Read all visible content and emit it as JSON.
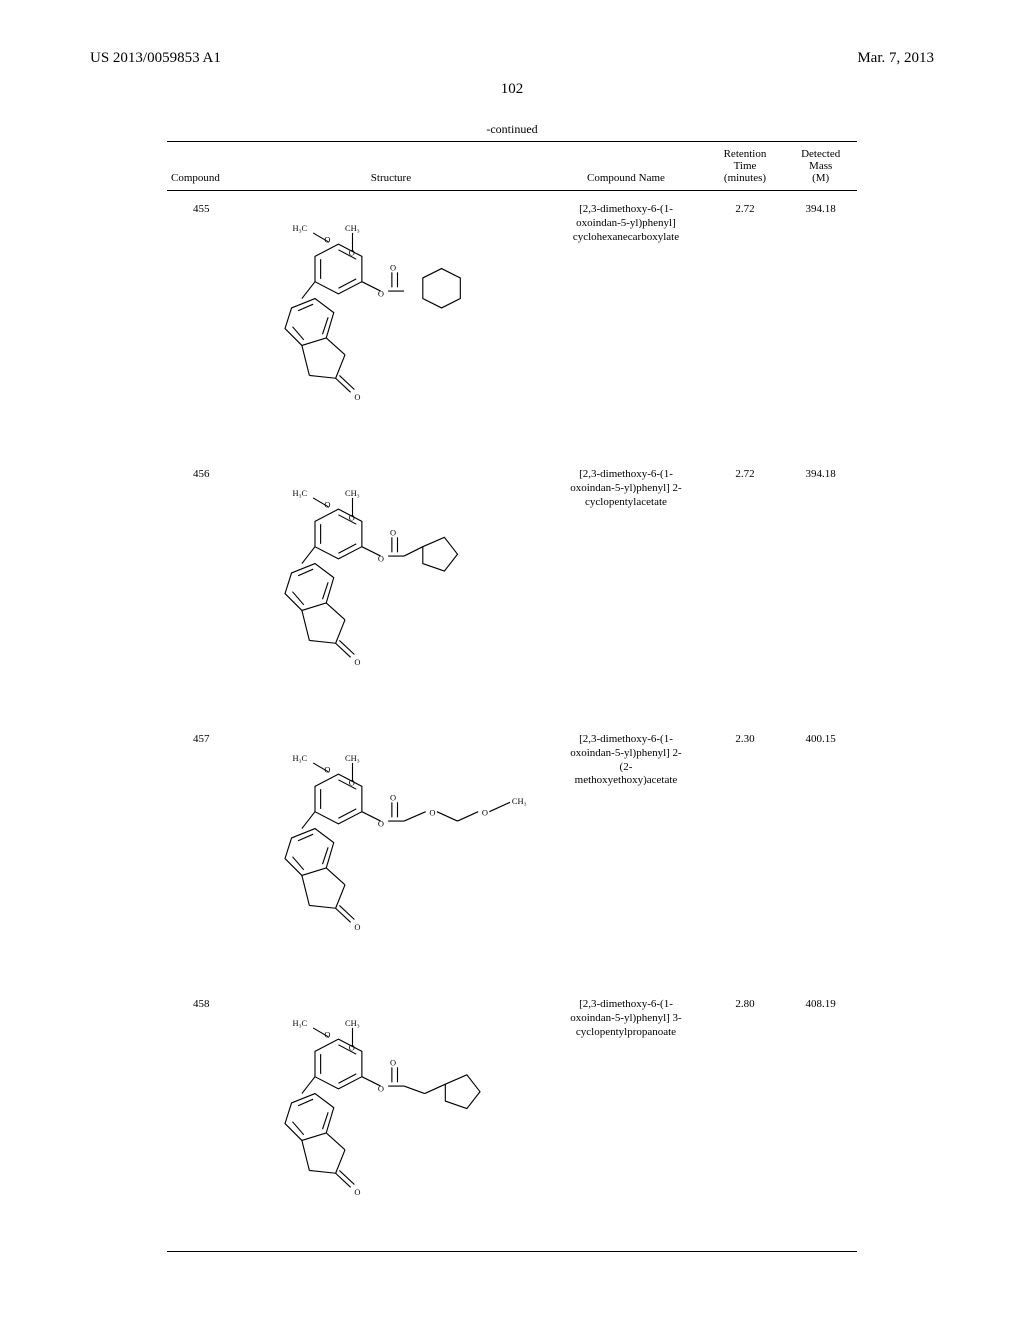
{
  "header": {
    "left": "US 2013/0059853 A1",
    "right": "Mar. 7, 2013"
  },
  "page_number": "102",
  "table": {
    "continued": "-continued",
    "columns": {
      "compound": "Compound",
      "structure": "Structure",
      "name": "Compound Name",
      "retention_top": "Retention",
      "retention_mid": "Time",
      "retention_bot": "(minutes)",
      "mass_top": "Detected",
      "mass_mid": "Mass",
      "mass_bot": "(M)"
    },
    "rows": [
      {
        "compound": "455",
        "name_l1": "[2,3-dimethoxy-6-(1-",
        "name_l2": "oxoindan-5-yl)phenyl]",
        "name_l3": "cyclohexanecarboxylate",
        "retention": "2.72",
        "mass": "394.18",
        "variant": "cyclohexyl"
      },
      {
        "compound": "456",
        "name_l1": "[2,3-dimethoxy-6-(1-",
        "name_l2": "oxoindan-5-yl)phenyl] 2-",
        "name_l3": "cyclopentylacetate",
        "retention": "2.72",
        "mass": "394.18",
        "variant": "cyclopentyl-ch2"
      },
      {
        "compound": "457",
        "name_l1": "[2,3-dimethoxy-6-(1-",
        "name_l2": "oxoindan-5-yl)phenyl] 2-",
        "name_l3": "(2-",
        "name_l4": "methoxyethoxy)acetate",
        "retention": "2.30",
        "mass": "400.15",
        "variant": "methoxyethoxy"
      },
      {
        "compound": "458",
        "name_l1": "[2,3-dimethoxy-6-(1-",
        "name_l2": "oxoindan-5-yl)phenyl] 3-",
        "name_l3": "cyclopentylpropanoate",
        "retention": "2.80",
        "mass": "408.19",
        "variant": "cyclopentyl-ch2ch2"
      }
    ]
  },
  "colors": {
    "text": "#000000",
    "background": "#ffffff",
    "rule": "#000000",
    "bond": "#000000"
  }
}
